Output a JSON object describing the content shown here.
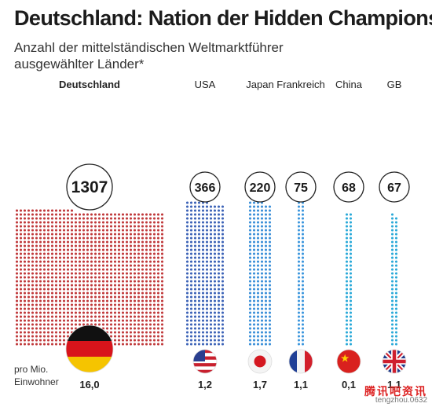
{
  "title": "Deutschland: Nation der Hidden Champions",
  "subtitle": "Anzahl der mittelständischen Weltmarktführer ausgewählter Länder*",
  "per_capita_label_line1": "pro Mio.",
  "per_capita_label_line2": "Einwohner",
  "watermark": {
    "text": "腾讯吧资讯",
    "url": "tengzhou.0632"
  },
  "chart_data": {
    "type": "bar",
    "categories": [
      "Deutschland",
      "USA",
      "Japan",
      "Frankreich",
      "China",
      "GB"
    ],
    "series": [
      {
        "values": [
          1307,
          366,
          220,
          75,
          68,
          67
        ]
      }
    ],
    "per_million_inhabitants": [
      "16,0",
      "1,2",
      "1,7",
      "1,1",
      "0,1",
      "1,1"
    ],
    "flags": [
      "flag-germany-icon",
      "flag-usa-icon",
      "flag-japan-icon",
      "flag-france-icon",
      "flag-china-icon",
      "flag-uk-icon"
    ],
    "colors": [
      "#c0393b",
      "#3c63b7",
      "#3b8fd8",
      "#3b96dd",
      "#2aa9d8",
      "#2aa9d8"
    ],
    "title": "Deutschland: Nation der Hidden Champions",
    "xlabel": "",
    "ylabel": ""
  }
}
